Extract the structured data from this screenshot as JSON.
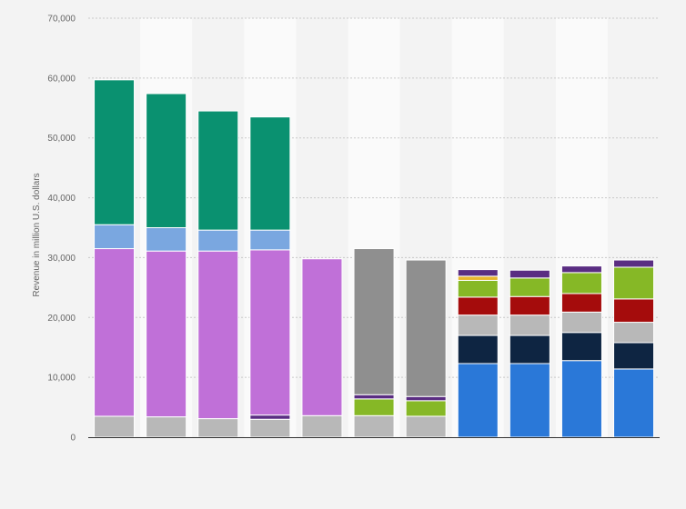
{
  "chart_data": {
    "type": "bar",
    "stacked": true,
    "title": "",
    "xlabel": "",
    "ylabel": "Revenue in million U.S. dollars",
    "ylim": [
      0,
      70000
    ],
    "yticks": [
      0,
      10000,
      20000,
      30000,
      40000,
      50000,
      60000,
      70000
    ],
    "ytick_labels": [
      "0",
      "10,000",
      "20,000",
      "30,000",
      "40,000",
      "50,000",
      "60,000",
      "70,000"
    ],
    "grid": true,
    "legend": "none",
    "categories": [
      "",
      "",
      "",
      "",
      "",
      "",
      "",
      "",
      "",
      "",
      ""
    ],
    "series": [
      {
        "color": "#b8b8b8",
        "values": [
          3500,
          3400,
          3100,
          3000,
          3600,
          3600,
          3500,
          0,
          0,
          0,
          0
        ]
      },
      {
        "color": "#5a2d82",
        "values": [
          0,
          0,
          0,
          700,
          0,
          0,
          0,
          0,
          0,
          0,
          0
        ]
      },
      {
        "color": "#c070d8",
        "values": [
          28000,
          27700,
          28000,
          27600,
          26200,
          0,
          0,
          0,
          0,
          0,
          0
        ]
      },
      {
        "color": "#7aa7e0",
        "values": [
          4000,
          3900,
          3500,
          3300,
          0,
          0,
          0,
          0,
          0,
          0,
          0
        ]
      },
      {
        "color": "#0a9170",
        "values": [
          24200,
          22400,
          19900,
          18900,
          0,
          0,
          0,
          0,
          0,
          0,
          0
        ]
      },
      {
        "color": "#86b826",
        "values": [
          0,
          0,
          0,
          0,
          0,
          2800,
          2600,
          0,
          0,
          0,
          0
        ]
      },
      {
        "color": "#5a2d82",
        "values": [
          0,
          0,
          0,
          0,
          0,
          700,
          700,
          0,
          0,
          0,
          0
        ]
      },
      {
        "color": "#8f8f8f",
        "values": [
          0,
          0,
          0,
          0,
          0,
          24400,
          22800,
          0,
          0,
          0,
          0
        ]
      },
      {
        "color": "#2a78d8",
        "values": [
          0,
          0,
          0,
          0,
          0,
          0,
          0,
          12300,
          12300,
          12800,
          11400
        ]
      },
      {
        "color": "#0e2542",
        "values": [
          0,
          0,
          0,
          0,
          0,
          0,
          0,
          4700,
          4700,
          4700,
          4400
        ]
      },
      {
        "color": "#b8b8b8",
        "values": [
          0,
          0,
          0,
          0,
          0,
          0,
          0,
          3400,
          3400,
          3400,
          3400
        ]
      },
      {
        "color": "#a50c0c",
        "values": [
          0,
          0,
          0,
          0,
          0,
          0,
          0,
          3000,
          3100,
          3100,
          3900
        ]
      },
      {
        "color": "#86b826",
        "values": [
          0,
          0,
          0,
          0,
          0,
          0,
          0,
          2800,
          3100,
          3500,
          5300
        ]
      },
      {
        "color": "#e8b52c",
        "values": [
          0,
          0,
          0,
          0,
          0,
          0,
          0,
          700,
          0,
          0,
          0
        ]
      },
      {
        "color": "#5a2d82",
        "values": [
          0,
          0,
          0,
          0,
          0,
          0,
          0,
          1100,
          1300,
          1100,
          1200
        ]
      }
    ]
  }
}
